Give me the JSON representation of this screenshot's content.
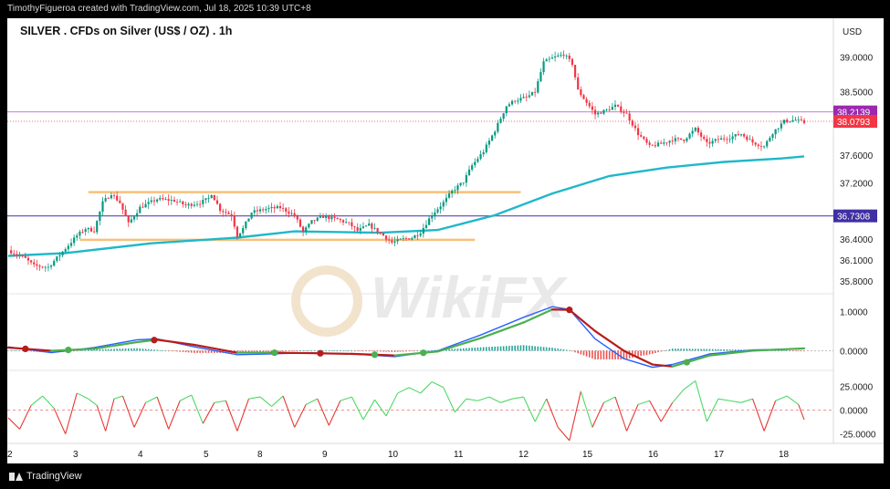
{
  "header": {
    "attribution": "TimothyFigueroa created with TradingView.com, Jul 18, 2025 10:39 UTC+8"
  },
  "footer": {
    "brand": "TradingView"
  },
  "watermark": "WikiFX",
  "chart_data": [
    {
      "type": "candlestick",
      "title": "SILVER . CFDs on Silver (US$ / OZ) . 1h",
      "currency": "USD",
      "y_ticks": [
        "39.0000",
        "38.5000",
        "37.6000",
        "37.2000",
        "36.4000",
        "36.1000",
        "35.8000"
      ],
      "ylim": [
        35.62,
        39.55
      ],
      "x_labels": [
        "2",
        "3",
        "4",
        "5",
        "8",
        "9",
        "10",
        "11",
        "12",
        "15",
        "16",
        "17",
        "18"
      ],
      "colors": {
        "up": "#089981",
        "down": "#f23645",
        "moving_average": "#1fb8c8",
        "support_resistance": "#f7c07a",
        "level_upper": "#c77bd6",
        "level_lower": "#6e59b8"
      },
      "close_path": [
        [
          0,
          36.24
        ],
        [
          6,
          36.12
        ],
        [
          9,
          36.02
        ],
        [
          14,
          36.0
        ],
        [
          19,
          36.22
        ],
        [
          24,
          36.45
        ],
        [
          27,
          36.55
        ],
        [
          30,
          36.52
        ],
        [
          33,
          36.92
        ],
        [
          36,
          37.05
        ],
        [
          39,
          36.92
        ],
        [
          42,
          36.62
        ],
        [
          46,
          36.85
        ],
        [
          52,
          36.97
        ],
        [
          58,
          36.95
        ],
        [
          62,
          36.88
        ],
        [
          67,
          36.92
        ],
        [
          70,
          36.98
        ],
        [
          71,
          37.05
        ],
        [
          74,
          36.82
        ],
        [
          78,
          36.74
        ],
        [
          80,
          36.45
        ],
        [
          82,
          36.55
        ],
        [
          85,
          36.78
        ],
        [
          90,
          36.83
        ],
        [
          95,
          36.85
        ],
        [
          100,
          36.74
        ],
        [
          103,
          36.5
        ],
        [
          106,
          36.65
        ],
        [
          110,
          36.72
        ],
        [
          115,
          36.68
        ],
        [
          119,
          36.62
        ],
        [
          122,
          36.52
        ],
        [
          126,
          36.6
        ],
        [
          131,
          36.45
        ],
        [
          134,
          36.35
        ],
        [
          138,
          36.4
        ],
        [
          141,
          36.42
        ],
        [
          144,
          36.5
        ],
        [
          148,
          36.75
        ],
        [
          152,
          36.92
        ],
        [
          155,
          37.08
        ],
        [
          159,
          37.22
        ],
        [
          162,
          37.45
        ],
        [
          166,
          37.65
        ],
        [
          170,
          37.95
        ],
        [
          174,
          38.3
        ],
        [
          177,
          38.38
        ],
        [
          181,
          38.42
        ],
        [
          184,
          38.5
        ],
        [
          187,
          38.92
        ],
        [
          190,
          38.98
        ],
        [
          194,
          39.04
        ],
        [
          197,
          38.9
        ],
        [
          199,
          38.52
        ],
        [
          202,
          38.35
        ],
        [
          205,
          38.18
        ],
        [
          209,
          38.24
        ],
        [
          212,
          38.3
        ],
        [
          216,
          38.18
        ],
        [
          220,
          37.9
        ],
        [
          224,
          37.72
        ],
        [
          228,
          37.76
        ],
        [
          232,
          37.82
        ],
        [
          236,
          37.82
        ],
        [
          240,
          37.97
        ],
        [
          244,
          37.76
        ],
        [
          248,
          37.82
        ],
        [
          252,
          37.85
        ],
        [
          256,
          37.9
        ],
        [
          260,
          37.78
        ],
        [
          264,
          37.72
        ],
        [
          267,
          37.92
        ],
        [
          271,
          38.08
        ],
        [
          275,
          38.1
        ],
        [
          278,
          38.06
        ]
      ],
      "moving_average": [
        [
          0,
          36.16
        ],
        [
          20,
          36.2
        ],
        [
          50,
          36.34
        ],
        [
          80,
          36.42
        ],
        [
          100,
          36.51
        ],
        [
          130,
          36.49
        ],
        [
          150,
          36.53
        ],
        [
          170,
          36.74
        ],
        [
          190,
          37.05
        ],
        [
          210,
          37.3
        ],
        [
          230,
          37.42
        ],
        [
          250,
          37.5
        ],
        [
          270,
          37.55
        ],
        [
          278,
          37.58
        ]
      ],
      "horizontal_lines": [
        {
          "id": "resistance",
          "value": 37.07,
          "from": 28,
          "to": 179
        },
        {
          "id": "support",
          "value": 36.39,
          "from": 25,
          "to": 163
        },
        {
          "id": "upper_level",
          "value": 38.2139
        },
        {
          "id": "lower_level",
          "value": 36.7308
        },
        {
          "id": "current_close",
          "value": 38.0793
        }
      ],
      "price_labels": [
        {
          "id": "upper_level",
          "text": "38.2139",
          "value": 38.2139,
          "color": "#9c27b0"
        },
        {
          "id": "current_close",
          "text": "38.0793",
          "value": 38.0793,
          "color": "#f23645"
        },
        {
          "id": "lower_level",
          "text": "36.7308",
          "value": 36.7308,
          "color": "#3f2fa3"
        }
      ]
    },
    {
      "type": "line",
      "name": "MACD",
      "y_ticks": [
        "1.0000",
        "0.0000"
      ],
      "ylim": [
        -0.5,
        1.45
      ],
      "colors": {
        "macd": "#2962ff",
        "signal_up": "#4caf50",
        "signal_down": "#b71c1c",
        "histogram_up": "#26a69a",
        "histogram_down": "#ef5350",
        "cross_up_marker": "#4caf50",
        "cross_down_marker": "#b71c1c"
      },
      "macd": [
        [
          0,
          0.1
        ],
        [
          15,
          -0.05
        ],
        [
          30,
          0.08
        ],
        [
          45,
          0.28
        ],
        [
          52,
          0.3
        ],
        [
          65,
          0.1
        ],
        [
          80,
          -0.1
        ],
        [
          92,
          -0.08
        ],
        [
          105,
          -0.05
        ],
        [
          120,
          -0.08
        ],
        [
          135,
          -0.15
        ],
        [
          150,
          0.0
        ],
        [
          165,
          0.4
        ],
        [
          180,
          0.85
        ],
        [
          190,
          1.12
        ],
        [
          196,
          1.05
        ],
        [
          205,
          0.3
        ],
        [
          215,
          -0.2
        ],
        [
          225,
          -0.42
        ],
        [
          232,
          -0.35
        ],
        [
          245,
          -0.08
        ],
        [
          260,
          0.02
        ],
        [
          278,
          0.05
        ]
      ],
      "signal": [
        [
          0,
          0.08
        ],
        [
          15,
          0.0
        ],
        [
          30,
          0.05
        ],
        [
          45,
          0.22
        ],
        [
          52,
          0.28
        ],
        [
          65,
          0.15
        ],
        [
          80,
          -0.05
        ],
        [
          92,
          -0.05
        ],
        [
          105,
          -0.06
        ],
        [
          120,
          -0.08
        ],
        [
          135,
          -0.12
        ],
        [
          150,
          -0.02
        ],
        [
          165,
          0.32
        ],
        [
          180,
          0.72
        ],
        [
          190,
          1.05
        ],
        [
          196,
          1.04
        ],
        [
          205,
          0.5
        ],
        [
          215,
          0.0
        ],
        [
          225,
          -0.35
        ],
        [
          232,
          -0.4
        ],
        [
          245,
          -0.12
        ],
        [
          260,
          0.0
        ],
        [
          278,
          0.06
        ]
      ],
      "cross_markers": [
        {
          "t": 6,
          "direction": "down"
        },
        {
          "t": 21,
          "direction": "up"
        },
        {
          "t": 51,
          "direction": "down"
        },
        {
          "t": 93,
          "direction": "up"
        },
        {
          "t": 109,
          "direction": "down"
        },
        {
          "t": 128,
          "direction": "up"
        },
        {
          "t": 145,
          "direction": "up"
        },
        {
          "t": 196,
          "direction": "down"
        },
        {
          "t": 237,
          "direction": "up"
        }
      ]
    },
    {
      "type": "line",
      "name": "Oscillator",
      "y_ticks": [
        "25.0000",
        "0.0000",
        "-25.0000"
      ],
      "ylim": [
        -35,
        42
      ],
      "colors": {
        "above_zero": "#4cd964",
        "below_zero": "#e53935",
        "zero_line": "#e57373"
      },
      "values": [
        [
          0,
          -8
        ],
        [
          4,
          -20
        ],
        [
          8,
          5
        ],
        [
          12,
          15
        ],
        [
          16,
          2
        ],
        [
          20,
          -25
        ],
        [
          24,
          18
        ],
        [
          28,
          12
        ],
        [
          31,
          5
        ],
        [
          34,
          -22
        ],
        [
          37,
          12
        ],
        [
          40,
          15
        ],
        [
          44,
          -18
        ],
        [
          48,
          8
        ],
        [
          52,
          14
        ],
        [
          56,
          -20
        ],
        [
          60,
          10
        ],
        [
          64,
          16
        ],
        [
          68,
          -14
        ],
        [
          72,
          8
        ],
        [
          76,
          10
        ],
        [
          80,
          -22
        ],
        [
          84,
          12
        ],
        [
          88,
          14
        ],
        [
          92,
          4
        ],
        [
          96,
          15
        ],
        [
          100,
          -18
        ],
        [
          104,
          6
        ],
        [
          108,
          12
        ],
        [
          112,
          -16
        ],
        [
          116,
          10
        ],
        [
          120,
          14
        ],
        [
          124,
          -10
        ],
        [
          128,
          11
        ],
        [
          132,
          -6
        ],
        [
          136,
          18
        ],
        [
          140,
          24
        ],
        [
          144,
          18
        ],
        [
          148,
          30
        ],
        [
          152,
          24
        ],
        [
          156,
          -2
        ],
        [
          160,
          12
        ],
        [
          164,
          10
        ],
        [
          168,
          14
        ],
        [
          172,
          8
        ],
        [
          176,
          12
        ],
        [
          180,
          14
        ],
        [
          184,
          -12
        ],
        [
          188,
          12
        ],
        [
          192,
          -18
        ],
        [
          196,
          -32
        ],
        [
          200,
          20
        ],
        [
          204,
          -18
        ],
        [
          208,
          8
        ],
        [
          212,
          14
        ],
        [
          216,
          -22
        ],
        [
          220,
          6
        ],
        [
          224,
          10
        ],
        [
          228,
          -12
        ],
        [
          232,
          8
        ],
        [
          236,
          22
        ],
        [
          240,
          31
        ],
        [
          244,
          -12
        ],
        [
          248,
          12
        ],
        [
          252,
          10
        ],
        [
          256,
          8
        ],
        [
          260,
          12
        ],
        [
          264,
          -22
        ],
        [
          268,
          10
        ],
        [
          272,
          15
        ],
        [
          276,
          6
        ],
        [
          278,
          -10
        ]
      ]
    }
  ]
}
